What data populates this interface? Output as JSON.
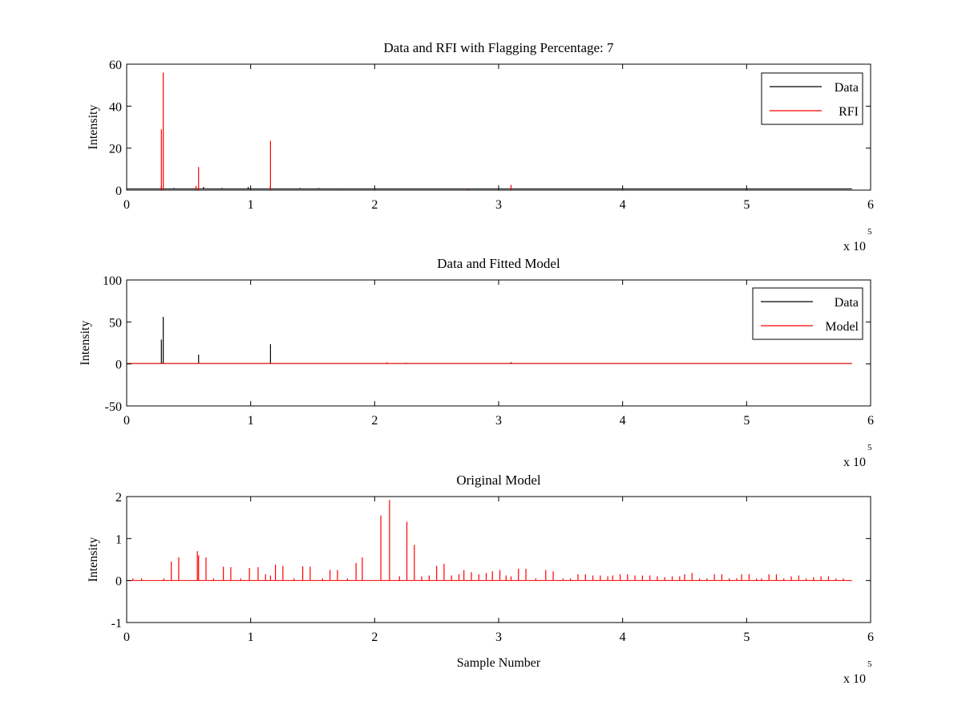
{
  "chart_data": [
    {
      "type": "line",
      "title": "Data and RFI with Flagging Percentage: 7",
      "xlabel": "",
      "ylabel": "Intensity",
      "xlim": [
        0,
        6
      ],
      "ylim": [
        0,
        60
      ],
      "xticks": [
        "0",
        "1",
        "2",
        "3",
        "4",
        "5",
        "6"
      ],
      "yticks": [
        "0",
        "20",
        "40",
        "60"
      ],
      "x_multiplier": {
        "base": "x 10",
        "exponent": "5"
      },
      "legend": {
        "position": "top-right",
        "entries": [
          {
            "label": "Data",
            "color": "#000000"
          },
          {
            "label": "RFI",
            "color": "#ff0000"
          }
        ]
      },
      "series": [
        {
          "name": "Data",
          "color": "#000000",
          "baseline": 0.6,
          "end_x": 5.85,
          "spikes": [
            [
              0.28,
              2
            ],
            [
              0.38,
              1
            ],
            [
              0.62,
              1.5
            ],
            [
              0.77,
              1
            ],
            [
              0.98,
              1.5
            ],
            [
              1.16,
              2
            ],
            [
              1.4,
              1
            ],
            [
              1.55,
              1
            ],
            [
              1.7,
              0.8
            ]
          ]
        },
        {
          "name": "RFI",
          "color": "#ff0000",
          "baseline": 0,
          "end_x": 5.85,
          "spikes": [
            [
              0.28,
              29
            ],
            [
              0.295,
              56
            ],
            [
              0.58,
              11
            ],
            [
              0.56,
              2
            ],
            [
              1.16,
              23.5
            ],
            [
              2.75,
              0.6
            ],
            [
              3.1,
              2.5
            ]
          ]
        }
      ]
    },
    {
      "type": "line",
      "title": "Data and Fitted Model",
      "xlabel": "",
      "ylabel": "Intensity",
      "xlim": [
        0,
        6
      ],
      "ylim": [
        -50,
        100
      ],
      "xticks": [
        "0",
        "1",
        "2",
        "3",
        "4",
        "5",
        "6"
      ],
      "yticks": [
        "-50",
        "0",
        "50",
        "100"
      ],
      "x_multiplier": {
        "base": "x 10",
        "exponent": "5"
      },
      "legend": {
        "position": "top-right",
        "entries": [
          {
            "label": "Data",
            "color": "#000000"
          },
          {
            "label": "Model",
            "color": "#ff0000"
          }
        ]
      },
      "series": [
        {
          "name": "Data",
          "color": "#000000",
          "baseline": 0.5,
          "end_x": 5.85,
          "spikes": [
            [
              0.28,
              29
            ],
            [
              0.295,
              56
            ],
            [
              0.58,
              11
            ],
            [
              1.16,
              23.5
            ],
            [
              3.1,
              2
            ]
          ]
        },
        {
          "name": "Model",
          "color": "#ff0000",
          "baseline": 0.5,
          "end_x": 5.85,
          "spikes": [
            [
              0.1,
              1
            ],
            [
              0.3,
              1
            ],
            [
              0.58,
              1.5
            ],
            [
              1.2,
              1
            ],
            [
              2.1,
              2
            ],
            [
              2.25,
              1.5
            ]
          ]
        }
      ]
    },
    {
      "type": "line",
      "title": "Original Model",
      "xlabel": "Sample Number",
      "ylabel": "Intensity",
      "xlim": [
        0,
        6
      ],
      "ylim": [
        -1,
        2
      ],
      "xticks": [
        "0",
        "1",
        "2",
        "3",
        "4",
        "5",
        "6"
      ],
      "yticks": [
        "-1",
        "0",
        "1",
        "2"
      ],
      "x_multiplier": {
        "base": "x 10",
        "exponent": "5"
      },
      "series": [
        {
          "color": "#ff0000",
          "baseline": 0,
          "end_x": 5.85,
          "spikes": [
            [
              0.05,
              0.05
            ],
            [
              0.12,
              0.05
            ],
            [
              0.3,
              0.05
            ],
            [
              0.36,
              0.45
            ],
            [
              0.42,
              0.55
            ],
            [
              0.57,
              0.7
            ],
            [
              0.58,
              0.6
            ],
            [
              0.64,
              0.55
            ],
            [
              0.7,
              0.05
            ],
            [
              0.78,
              0.33
            ],
            [
              0.84,
              0.32
            ],
            [
              0.92,
              0.05
            ],
            [
              0.99,
              0.3
            ],
            [
              1.06,
              0.32
            ],
            [
              1.12,
              0.15
            ],
            [
              1.16,
              0.12
            ],
            [
              1.2,
              0.38
            ],
            [
              1.26,
              0.35
            ],
            [
              1.35,
              0.05
            ],
            [
              1.42,
              0.34
            ],
            [
              1.48,
              0.33
            ],
            [
              1.58,
              0.05
            ],
            [
              1.64,
              0.25
            ],
            [
              1.7,
              0.25
            ],
            [
              1.78,
              0.05
            ],
            [
              1.85,
              0.42
            ],
            [
              1.9,
              0.55
            ],
            [
              2.05,
              1.55
            ],
            [
              2.12,
              1.92
            ],
            [
              2.2,
              0.1
            ],
            [
              2.26,
              1.4
            ],
            [
              2.32,
              0.85
            ],
            [
              2.38,
              0.1
            ],
            [
              2.44,
              0.12
            ],
            [
              2.5,
              0.35
            ],
            [
              2.56,
              0.4
            ],
            [
              2.62,
              0.12
            ],
            [
              2.68,
              0.15
            ],
            [
              2.72,
              0.25
            ],
            [
              2.78,
              0.2
            ],
            [
              2.84,
              0.15
            ],
            [
              2.9,
              0.18
            ],
            [
              2.95,
              0.22
            ],
            [
              3.01,
              0.25
            ],
            [
              3.06,
              0.12
            ],
            [
              3.1,
              0.1
            ],
            [
              3.16,
              0.28
            ],
            [
              3.22,
              0.28
            ],
            [
              3.3,
              0.05
            ],
            [
              3.38,
              0.25
            ],
            [
              3.44,
              0.22
            ],
            [
              3.52,
              0.05
            ],
            [
              3.58,
              0.05
            ],
            [
              3.64,
              0.15
            ],
            [
              3.7,
              0.15
            ],
            [
              3.76,
              0.12
            ],
            [
              3.82,
              0.12
            ],
            [
              3.88,
              0.1
            ],
            [
              3.92,
              0.12
            ],
            [
              3.98,
              0.15
            ],
            [
              4.04,
              0.15
            ],
            [
              4.1,
              0.12
            ],
            [
              4.16,
              0.12
            ],
            [
              4.22,
              0.12
            ],
            [
              4.28,
              0.1
            ],
            [
              4.34,
              0.08
            ],
            [
              4.4,
              0.1
            ],
            [
              4.46,
              0.1
            ],
            [
              4.5,
              0.15
            ],
            [
              4.56,
              0.18
            ],
            [
              4.62,
              0.05
            ],
            [
              4.68,
              0.05
            ],
            [
              4.74,
              0.15
            ],
            [
              4.8,
              0.15
            ],
            [
              4.86,
              0.05
            ],
            [
              4.92,
              0.05
            ],
            [
              4.96,
              0.15
            ],
            [
              5.02,
              0.15
            ],
            [
              5.08,
              0.05
            ],
            [
              5.12,
              0.05
            ],
            [
              5.18,
              0.15
            ],
            [
              5.24,
              0.15
            ],
            [
              5.3,
              0.05
            ],
            [
              5.36,
              0.1
            ],
            [
              5.42,
              0.12
            ],
            [
              5.48,
              0.05
            ],
            [
              5.54,
              0.08
            ],
            [
              5.6,
              0.1
            ],
            [
              5.66,
              0.1
            ],
            [
              5.72,
              0.05
            ],
            [
              5.78,
              0.05
            ]
          ]
        }
      ]
    }
  ]
}
